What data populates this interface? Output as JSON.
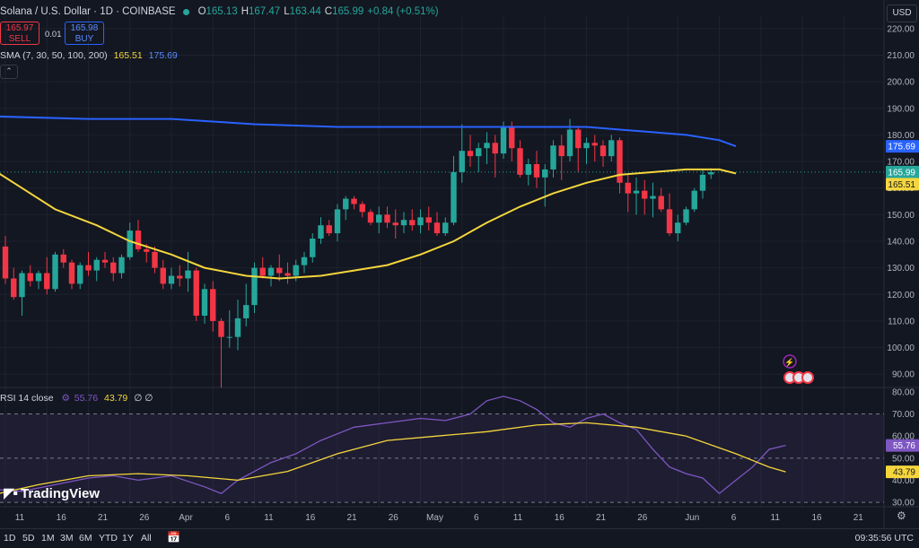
{
  "header": {
    "title": "Solana / U.S. Dollar · 1D · COINBASE",
    "o_label": "O",
    "o_value": "165.13",
    "h_label": "H",
    "h_value": "167.47",
    "l_label": "L",
    "l_value": "163.44",
    "c_label": "C",
    "c_value": "165.99",
    "change": "+0.84 (+0.51%)"
  },
  "trade": {
    "sell_price": "165.97",
    "sell_label": "SELL",
    "buy_price": "165.98",
    "buy_label": "BUY",
    "spread": "0.01"
  },
  "indicators": {
    "sma_label": "SMA (7, 30, 50, 100, 200)",
    "sma_value_1": "165.51",
    "sma_value_2": "175.69",
    "rsi_label": "RSI 14 close",
    "rsi_value": "55.76",
    "rsi_ma_value": "43.79",
    "rsi_extra": "∅ ∅"
  },
  "currency": "USD",
  "logo_text": "TradingView",
  "ranges": [
    "1D",
    "5D",
    "1M",
    "3M",
    "6M",
    "YTD",
    "1Y",
    "All"
  ],
  "clock": "09:35:56 UTC",
  "colors": {
    "up": "#26a69a",
    "down": "#f23645",
    "sma_fast": "#f5d63d",
    "sma_slow": "#2962ff",
    "rsi": "#7e57c2",
    "bg": "#131722"
  },
  "chart_data": [
    {
      "type": "candlestick",
      "title": "Solana / U.S. Dollar · 1D · COINBASE",
      "ylim": [
        85,
        225
      ],
      "y_ticks": [
        90,
        100,
        110,
        120,
        130,
        140,
        150,
        160,
        170,
        180,
        190,
        200,
        210,
        220
      ],
      "x_labels": [
        {
          "label": "11",
          "i": 0
        },
        {
          "label": "16",
          "i": 5
        },
        {
          "label": "21",
          "i": 10
        },
        {
          "label": "26",
          "i": 15
        },
        {
          "label": "Apr",
          "i": 20
        },
        {
          "label": "6",
          "i": 25
        },
        {
          "label": "11",
          "i": 30
        },
        {
          "label": "16",
          "i": 35
        },
        {
          "label": "21",
          "i": 40
        },
        {
          "label": "26",
          "i": 45
        },
        {
          "label": "May",
          "i": 50
        },
        {
          "label": "6",
          "i": 55
        },
        {
          "label": "11",
          "i": 60
        },
        {
          "label": "16",
          "i": 65
        },
        {
          "label": "21",
          "i": 70
        },
        {
          "label": "26",
          "i": 75
        },
        {
          "label": "Jun",
          "i": 81
        },
        {
          "label": "6",
          "i": 86
        },
        {
          "label": "11",
          "i": 91
        },
        {
          "label": "16",
          "i": 96
        },
        {
          "label": "21",
          "i": 101
        }
      ],
      "candles": [
        [
          138,
          142,
          124,
          126
        ],
        [
          126,
          130,
          118,
          119
        ],
        [
          119,
          129,
          112,
          128
        ],
        [
          128,
          131,
          123,
          125
        ],
        [
          125,
          129,
          122,
          128
        ],
        [
          128,
          134,
          120,
          122
        ],
        [
          122,
          136,
          121,
          135
        ],
        [
          135,
          137,
          130,
          132
        ],
        [
          132,
          133,
          122,
          124
        ],
        [
          124,
          132,
          122,
          131
        ],
        [
          131,
          136,
          127,
          129
        ],
        [
          129,
          134,
          125,
          133
        ],
        [
          133,
          136,
          130,
          132
        ],
        [
          132,
          134,
          125,
          128
        ],
        [
          128,
          135,
          126,
          134
        ],
        [
          134,
          147,
          133,
          144
        ],
        [
          144,
          148,
          136,
          137
        ],
        [
          137,
          139,
          132,
          136
        ],
        [
          136,
          138,
          128,
          130
        ],
        [
          130,
          133,
          122,
          124
        ],
        [
          124,
          130,
          122,
          127
        ],
        [
          127,
          131,
          123,
          126
        ],
        [
          126,
          136,
          121,
          129
        ],
        [
          129,
          130,
          110,
          112
        ],
        [
          112,
          124,
          109,
          122
        ],
        [
          122,
          125,
          106,
          110
        ],
        [
          110,
          111,
          85,
          104
        ],
        [
          104,
          114,
          100,
          104
        ],
        [
          104,
          118,
          99,
          111
        ],
        [
          111,
          124,
          108,
          116
        ],
        [
          116,
          132,
          113,
          130
        ],
        [
          130,
          134,
          126,
          127
        ],
        [
          127,
          131,
          123,
          130
        ],
        [
          130,
          135,
          125,
          128
        ],
        [
          128,
          132,
          124,
          127
        ],
        [
          127,
          133,
          125,
          131
        ],
        [
          131,
          136,
          128,
          134
        ],
        [
          134,
          143,
          132,
          141
        ],
        [
          141,
          149,
          139,
          146
        ],
        [
          146,
          148,
          142,
          143
        ],
        [
          143,
          154,
          140,
          152
        ],
        [
          152,
          157,
          148,
          156
        ],
        [
          156,
          157,
          152,
          154
        ],
        [
          154,
          155,
          149,
          151
        ],
        [
          151,
          152,
          146,
          147
        ],
        [
          147,
          153,
          143,
          150
        ],
        [
          150,
          153,
          145,
          147
        ],
        [
          147,
          152,
          141,
          146
        ],
        [
          146,
          151,
          143,
          148
        ],
        [
          148,
          152,
          144,
          146
        ],
        [
          146,
          152,
          143,
          149
        ],
        [
          149,
          153,
          144,
          147
        ],
        [
          147,
          151,
          142,
          143
        ],
        [
          143,
          149,
          142,
          147
        ],
        [
          147,
          172,
          146,
          166
        ],
        [
          166,
          184,
          162,
          174
        ],
        [
          174,
          180,
          168,
          172
        ],
        [
          172,
          177,
          166,
          175
        ],
        [
          175,
          181,
          169,
          177
        ],
        [
          177,
          180,
          164,
          173
        ],
        [
          173,
          185,
          171,
          183
        ],
        [
          183,
          185,
          170,
          175
        ],
        [
          175,
          178,
          164,
          165
        ],
        [
          165,
          171,
          161,
          169
        ],
        [
          169,
          174,
          160,
          164
        ],
        [
          164,
          169,
          153,
          167
        ],
        [
          167,
          178,
          164,
          176
        ],
        [
          176,
          180,
          163,
          172
        ],
        [
          172,
          186,
          170,
          182
        ],
        [
          182,
          183,
          166,
          175
        ],
        [
          175,
          179,
          169,
          177
        ],
        [
          177,
          180,
          170,
          176
        ],
        [
          176,
          178,
          168,
          172
        ],
        [
          172,
          180,
          170,
          178
        ],
        [
          178,
          179,
          158,
          162
        ],
        [
          162,
          165,
          151,
          158
        ],
        [
          158,
          164,
          150,
          159
        ],
        [
          159,
          163,
          150,
          156
        ],
        [
          156,
          162,
          149,
          157
        ],
        [
          157,
          160,
          151,
          152
        ],
        [
          152,
          158,
          142,
          143
        ],
        [
          143,
          150,
          140,
          147
        ],
        [
          147,
          153,
          146,
          152
        ],
        [
          152,
          160,
          151,
          159
        ],
        [
          159,
          167,
          156,
          165
        ],
        [
          165.13,
          167.47,
          163.44,
          165.99
        ]
      ],
      "series": [
        {
          "name": "SMA 1",
          "color": "#f5d63d",
          "last": 165.51,
          "points": [
            [
              -2,
              168
            ],
            [
              2,
              160
            ],
            [
              6,
              152
            ],
            [
              11,
              146
            ],
            [
              15,
              140
            ],
            [
              20,
              135
            ],
            [
              24,
              130
            ],
            [
              29,
              127
            ],
            [
              33,
              126
            ],
            [
              38,
              127
            ],
            [
              42,
              129
            ],
            [
              46,
              131
            ],
            [
              50,
              135
            ],
            [
              54,
              140
            ],
            [
              58,
              147
            ],
            [
              62,
              153
            ],
            [
              66,
              158
            ],
            [
              70,
              162
            ],
            [
              74,
              165
            ],
            [
              78,
              166
            ],
            [
              82,
              167
            ],
            [
              86,
              167
            ],
            [
              88,
              165.5
            ]
          ]
        },
        {
          "name": "SMA 2",
          "color": "#2962ff",
          "last": 175.69,
          "points": [
            [
              -2,
              187
            ],
            [
              10,
              186
            ],
            [
              20,
              186
            ],
            [
              30,
              184
            ],
            [
              40,
              183
            ],
            [
              50,
              183
            ],
            [
              60,
              183
            ],
            [
              66,
              183
            ],
            [
              70,
              183
            ],
            [
              74,
              182
            ],
            [
              78,
              181
            ],
            [
              82,
              180
            ],
            [
              86,
              178
            ],
            [
              88,
              175.7
            ]
          ]
        }
      ],
      "price_labels": [
        {
          "text": "175.69",
          "value": 175.69,
          "color": "#2962ff"
        },
        {
          "text": "165.99",
          "value": 165.99,
          "color": "#26a69a"
        },
        {
          "text": "165.51",
          "value": 165.51,
          "color": "#f5d63d"
        }
      ]
    },
    {
      "type": "line",
      "title": "RSI 14 close",
      "ylim": [
        28,
        82
      ],
      "y_ticks": [
        30,
        40,
        50,
        60,
        70,
        80
      ],
      "band": [
        30,
        70
      ],
      "mid": 50,
      "series": [
        {
          "name": "RSI",
          "color": "#7e57c2",
          "points": [
            [
              -2,
              36
            ],
            [
              2,
              35
            ],
            [
              6,
              38
            ],
            [
              10,
              41
            ],
            [
              13,
              42
            ],
            [
              16,
              40
            ],
            [
              20,
              42
            ],
            [
              24,
              37
            ],
            [
              26,
              34
            ],
            [
              28,
              40
            ],
            [
              32,
              48
            ],
            [
              35,
              52
            ],
            [
              38,
              58
            ],
            [
              42,
              64
            ],
            [
              46,
              66
            ],
            [
              50,
              68
            ],
            [
              53,
              67
            ],
            [
              56,
              70
            ],
            [
              58,
              76
            ],
            [
              60,
              78
            ],
            [
              62,
              76
            ],
            [
              64,
              72
            ],
            [
              66,
              66
            ],
            [
              68,
              64
            ],
            [
              70,
              68
            ],
            [
              72,
              70
            ],
            [
              74,
              66
            ],
            [
              76,
              63
            ],
            [
              78,
              54
            ],
            [
              80,
              46
            ],
            [
              82,
              43
            ],
            [
              84,
              41
            ],
            [
              86,
              34
            ],
            [
              88,
              40
            ],
            [
              90,
              46
            ],
            [
              92,
              54
            ],
            [
              94,
              55.76
            ]
          ]
        },
        {
          "name": "RSI MA",
          "color": "#f5d63d",
          "points": [
            [
              -2,
              33
            ],
            [
              4,
              38
            ],
            [
              10,
              42
            ],
            [
              16,
              43
            ],
            [
              22,
              42
            ],
            [
              28,
              40
            ],
            [
              34,
              44
            ],
            [
              40,
              52
            ],
            [
              46,
              58
            ],
            [
              52,
              60
            ],
            [
              58,
              62
            ],
            [
              64,
              65
            ],
            [
              70,
              66
            ],
            [
              76,
              64
            ],
            [
              82,
              60
            ],
            [
              88,
              52
            ],
            [
              92,
              46
            ],
            [
              94,
              43.79
            ]
          ]
        }
      ],
      "value_labels": [
        {
          "text": "55.76",
          "value": 55.76,
          "color": "#7e57c2"
        },
        {
          "text": "43.79",
          "value": 43.79,
          "color": "#f5d63d"
        }
      ]
    }
  ]
}
